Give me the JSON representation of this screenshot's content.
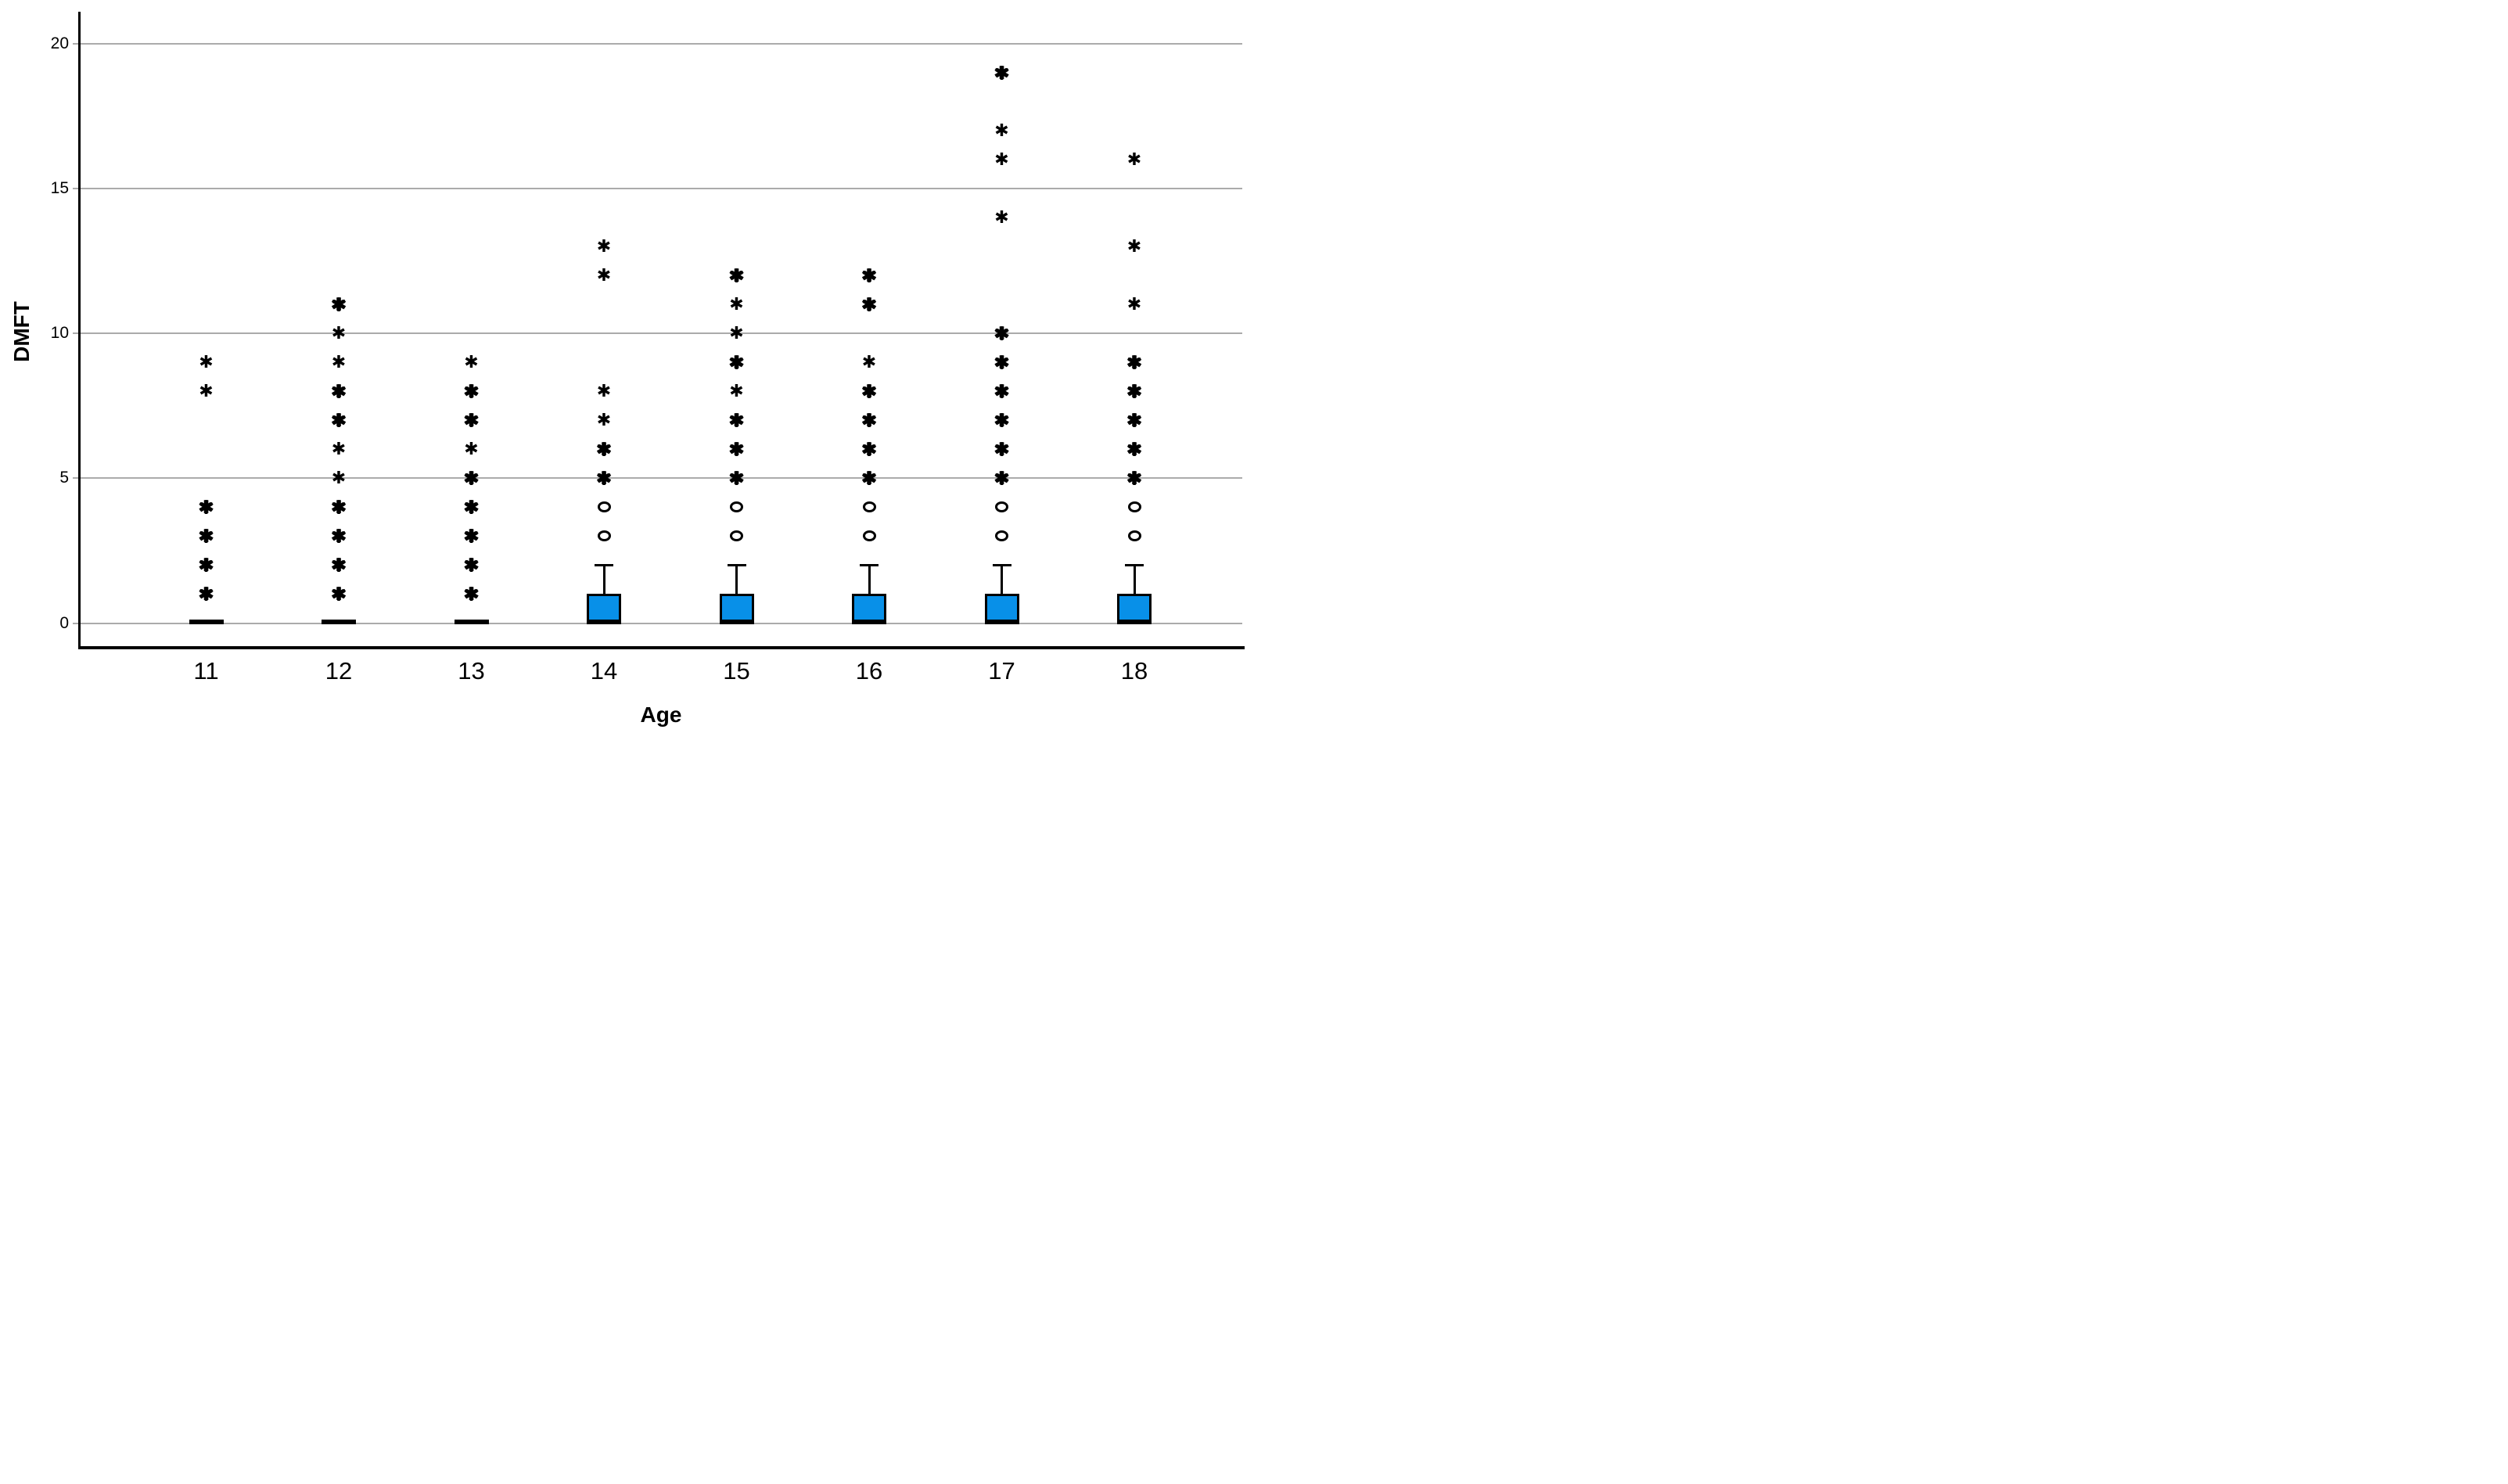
{
  "figure": {
    "background": "#FFFFFF",
    "box_fill": "#0890E8",
    "box_border": "#000000",
    "grid_color": "#ABABAB",
    "text_color": "#000000"
  },
  "chart_data": {
    "type": "boxplot",
    "title": "",
    "xlabel": "Age",
    "ylabel": "DMFT",
    "ylim": [
      0,
      21
    ],
    "yticks": [
      0,
      5,
      10,
      15,
      20
    ],
    "grid": "horizontal",
    "legend": "none",
    "categories": [
      "11",
      "12",
      "13",
      "14",
      "15",
      "16",
      "17",
      "18"
    ],
    "marker_legend": {
      "star": "extreme value (asterisk marker)",
      "circle": "outlier (open circle marker)"
    },
    "groups": [
      {
        "age": "11",
        "collapsed": true,
        "q1": 0,
        "median": 0,
        "q3": 0,
        "whisker_high": 0,
        "circles": [],
        "stars": [
          1,
          2,
          3,
          4,
          8,
          9
        ],
        "heavy": [
          1,
          2,
          3,
          4
        ]
      },
      {
        "age": "12",
        "collapsed": true,
        "q1": 0,
        "median": 0,
        "q3": 0,
        "whisker_high": 0,
        "circles": [],
        "stars": [
          1,
          2,
          3,
          4,
          5,
          6,
          7,
          8,
          9,
          10,
          11
        ],
        "heavy": [
          1,
          2,
          3,
          4,
          7,
          8,
          11
        ]
      },
      {
        "age": "13",
        "collapsed": true,
        "q1": 0,
        "median": 0,
        "q3": 0,
        "whisker_high": 0,
        "circles": [],
        "stars": [
          1,
          2,
          3,
          4,
          5,
          6,
          7,
          8,
          9
        ],
        "heavy": [
          1,
          2,
          3,
          4,
          5,
          7,
          8
        ]
      },
      {
        "age": "14",
        "collapsed": false,
        "q1": 0,
        "median": 0,
        "q3": 1,
        "whisker_high": 2,
        "circles": [
          3,
          4
        ],
        "stars": [
          5,
          6,
          7,
          8,
          12,
          13
        ],
        "heavy": [
          5,
          6
        ]
      },
      {
        "age": "15",
        "collapsed": false,
        "q1": 0,
        "median": 0,
        "q3": 1,
        "whisker_high": 2,
        "circles": [
          3,
          4
        ],
        "stars": [
          5,
          6,
          7,
          8,
          9,
          10,
          11,
          12
        ],
        "heavy": [
          5,
          6,
          7,
          9,
          12
        ]
      },
      {
        "age": "16",
        "collapsed": false,
        "q1": 0,
        "median": 0,
        "q3": 1,
        "whisker_high": 2,
        "circles": [
          3,
          4
        ],
        "stars": [
          5,
          6,
          7,
          8,
          9,
          11,
          12
        ],
        "heavy": [
          5,
          6,
          7,
          8,
          11,
          12
        ]
      },
      {
        "age": "17",
        "collapsed": false,
        "q1": 0,
        "median": 0,
        "q3": 1,
        "whisker_high": 2,
        "circles": [
          3,
          4
        ],
        "stars": [
          5,
          6,
          7,
          8,
          9,
          10,
          14,
          16,
          17,
          19
        ],
        "heavy": [
          5,
          6,
          7,
          8,
          9,
          10,
          19
        ]
      },
      {
        "age": "18",
        "collapsed": false,
        "q1": 0,
        "median": 0,
        "q3": 1,
        "whisker_high": 2,
        "circles": [
          3,
          4
        ],
        "stars": [
          5,
          6,
          7,
          8,
          9,
          11,
          13,
          16
        ],
        "heavy": [
          5,
          6,
          7,
          8,
          9
        ]
      }
    ]
  }
}
